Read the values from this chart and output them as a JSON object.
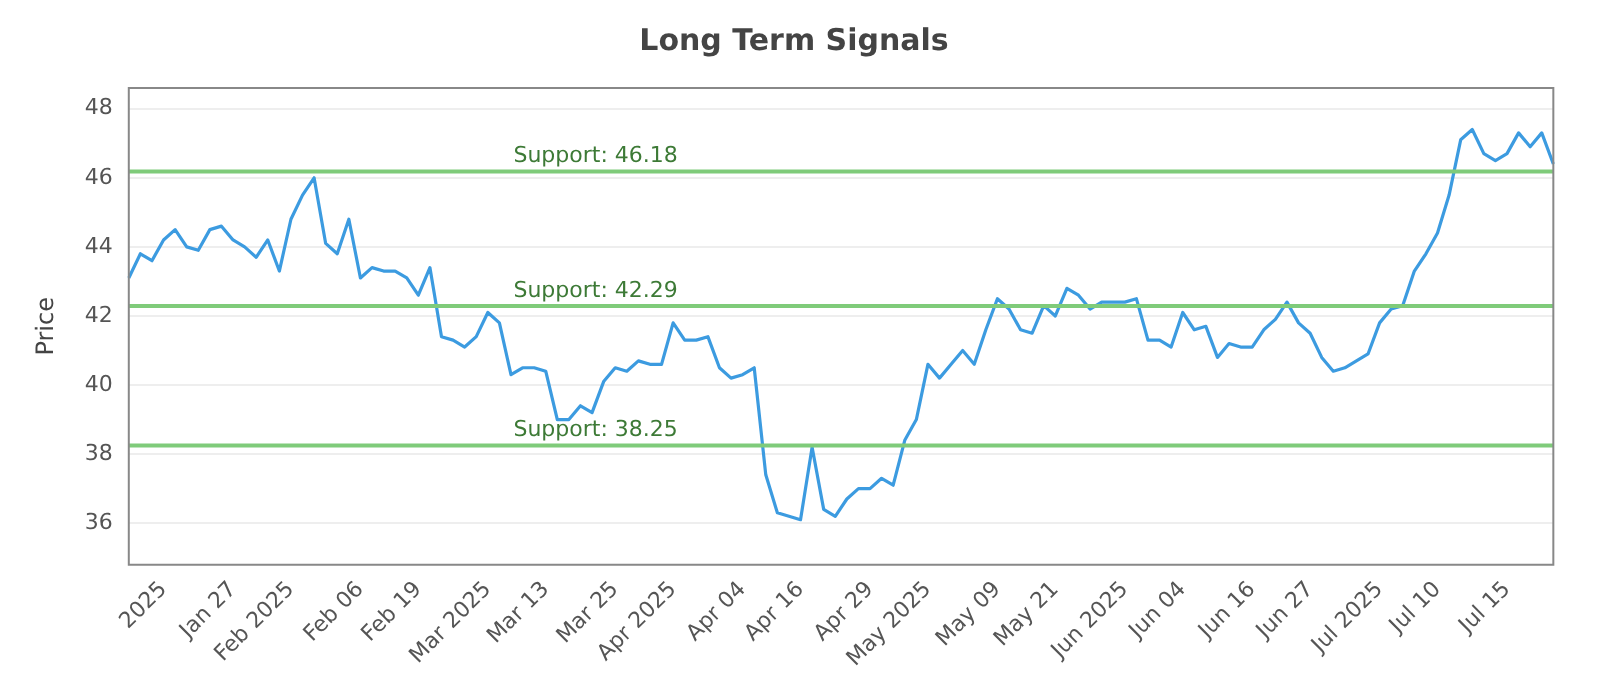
{
  "chart_data": {
    "type": "line",
    "title": "Long Term Signals",
    "ylabel": "Price",
    "categories": [
      null,
      null,
      null,
      "2025",
      null,
      null,
      null,
      null,
      null,
      "Jan 27",
      null,
      null,
      null,
      null,
      "Feb 2025",
      null,
      null,
      null,
      null,
      null,
      "Feb 06",
      null,
      null,
      null,
      null,
      "Feb 19",
      null,
      null,
      null,
      null,
      null,
      "Mar 2025",
      null,
      null,
      null,
      null,
      "Mar 13",
      null,
      null,
      null,
      null,
      null,
      "Mar 25",
      null,
      null,
      null,
      null,
      "Apr 2025",
      null,
      null,
      null,
      null,
      null,
      "Apr 04",
      null,
      null,
      null,
      null,
      "Apr 16",
      null,
      null,
      null,
      null,
      null,
      "Apr 29",
      null,
      null,
      null,
      null,
      "May 2025",
      null,
      null,
      null,
      null,
      null,
      "May 09",
      null,
      null,
      null,
      null,
      "May 21",
      null,
      null,
      null,
      null,
      null,
      "Jun 2025",
      null,
      null,
      null,
      null,
      "Jun 04",
      null,
      null,
      null,
      null,
      null,
      "Jun 16",
      null,
      null,
      null,
      null,
      "Jun 27",
      null,
      null,
      null,
      null,
      null,
      "Jul 2025",
      null,
      null,
      null,
      null,
      "Jul 10",
      null,
      null,
      null,
      null,
      null,
      "Jul 15",
      null,
      null,
      null,
      null
    ],
    "series": [
      {
        "color": "#3c9be0",
        "values": [
          43.1,
          43.8,
          43.6,
          44.2,
          44.5,
          44.0,
          43.9,
          44.5,
          44.6,
          44.2,
          44.0,
          43.7,
          44.2,
          43.3,
          44.8,
          45.5,
          46.0,
          44.1,
          43.8,
          44.8,
          43.1,
          43.4,
          43.3,
          43.3,
          43.1,
          42.6,
          43.4,
          41.4,
          41.3,
          41.1,
          41.4,
          42.1,
          41.8,
          40.3,
          40.5,
          40.5,
          40.4,
          39.0,
          39.0,
          39.4,
          39.2,
          40.1,
          40.5,
          40.4,
          40.7,
          40.6,
          40.6,
          41.8,
          41.3,
          41.3,
          41.4,
          40.5,
          40.2,
          40.3,
          40.5,
          37.4,
          36.3,
          36.2,
          36.1,
          38.2,
          36.4,
          36.2,
          36.7,
          37.0,
          37.0,
          37.3,
          37.1,
          38.4,
          39.0,
          40.6,
          40.2,
          40.6,
          41.0,
          40.6,
          41.6,
          42.5,
          42.2,
          41.6,
          41.5,
          42.3,
          42.0,
          42.8,
          42.6,
          42.2,
          42.4,
          42.4,
          42.4,
          42.5,
          41.3,
          41.3,
          41.1,
          42.1,
          41.6,
          41.7,
          40.8,
          41.2,
          41.1,
          41.1,
          41.6,
          41.9,
          42.4,
          41.8,
          41.5,
          40.8,
          40.4,
          40.5,
          40.7,
          40.9,
          41.8,
          42.2,
          42.3,
          43.3,
          43.8,
          44.4,
          45.5,
          47.1,
          47.4,
          46.7,
          46.5,
          46.7,
          47.3,
          46.9,
          47.3,
          46.4
        ]
      }
    ],
    "ylim": [
      34.8,
      48.6
    ],
    "yticks": [
      36,
      38,
      40,
      42,
      44,
      46,
      48
    ],
    "grid": "y",
    "legend": false,
    "marker": "none",
    "line_style": "solid",
    "ref_lines": [
      {
        "axis": "y",
        "value": 46.18,
        "label": "Support: 46.18",
        "color": "#7fcb7a"
      },
      {
        "axis": "y",
        "value": 42.29,
        "label": "Support: 42.29",
        "color": "#7fcb7a"
      },
      {
        "axis": "y",
        "value": 38.25,
        "label": "Support: 38.25",
        "color": "#7fcb7a"
      }
    ]
  }
}
